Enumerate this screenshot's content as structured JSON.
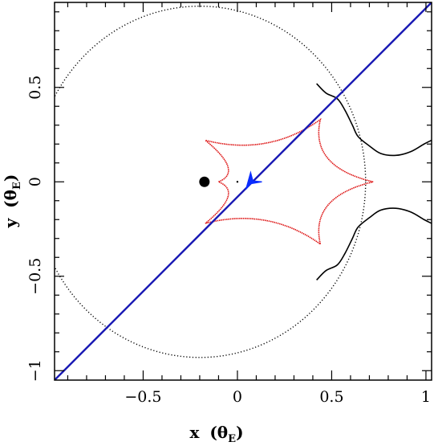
{
  "chart_data": {
    "type": "line",
    "xlim": [
      -0.97,
      1.03
    ],
    "ylim": [
      -1.05,
      0.95
    ],
    "x_ticks": [
      {
        "value": -0.5,
        "label": "−0.5"
      },
      {
        "value": 0,
        "label": "0"
      },
      {
        "value": 0.5,
        "label": "0.5"
      },
      {
        "value": 1,
        "label": "1"
      }
    ],
    "y_ticks": [
      {
        "value": -1,
        "label": "−1"
      },
      {
        "value": -0.5,
        "label": "−0.5"
      },
      {
        "value": 0,
        "label": "0"
      },
      {
        "value": 0.5,
        "label": "0.5"
      }
    ],
    "xlabel": {
      "main": "x",
      "unit": "(θ",
      "sub": "E",
      "close": ")"
    },
    "ylabel": {
      "main": "y",
      "unit": "(θ",
      "sub": "E",
      "close": ")"
    },
    "grid": false,
    "colors": {
      "critical_curve": "#000000",
      "caustic": "#dd1111",
      "trajectory": "#1a1ab4",
      "source_track": "#0a2cff",
      "lens": "#000000"
    },
    "series": [
      {
        "id": "critical-curve",
        "style": "dotted",
        "shape": "ellipse",
        "cx": -0.2,
        "cy": 0,
        "rx": 0.88,
        "ry": 0.93
      },
      {
        "id": "critical-curve-branch-upper",
        "style": "solid",
        "points": [
          [
            0.42,
            0.52
          ],
          [
            0.47,
            0.47
          ],
          [
            0.53,
            0.44
          ],
          [
            0.57,
            0.38
          ],
          [
            0.61,
            0.3
          ],
          [
            0.64,
            0.24
          ],
          [
            0.7,
            0.19
          ],
          [
            0.76,
            0.15
          ],
          [
            0.84,
            0.14
          ],
          [
            0.92,
            0.16
          ],
          [
            0.99,
            0.2
          ],
          [
            1.03,
            0.22
          ]
        ]
      },
      {
        "id": "critical-curve-branch-lower",
        "style": "solid",
        "points": [
          [
            0.42,
            -0.52
          ],
          [
            0.47,
            -0.47
          ],
          [
            0.53,
            -0.44
          ],
          [
            0.57,
            -0.38
          ],
          [
            0.61,
            -0.3
          ],
          [
            0.64,
            -0.24
          ],
          [
            0.7,
            -0.19
          ],
          [
            0.76,
            -0.15
          ],
          [
            0.84,
            -0.14
          ],
          [
            0.92,
            -0.16
          ],
          [
            0.99,
            -0.2
          ],
          [
            1.03,
            -0.22
          ]
        ]
      },
      {
        "id": "caustic",
        "style": "dotted-dense",
        "cusps": [
          [
            0.72,
            0
          ],
          [
            0.44,
            0.33
          ],
          [
            -0.17,
            0.22
          ],
          [
            -0.1,
            0
          ],
          [
            -0.17,
            -0.22
          ],
          [
            0.44,
            -0.33
          ]
        ],
        "inward_factor": 0.32
      },
      {
        "id": "trajectory",
        "style": "solid",
        "points": [
          [
            -0.97,
            -1.05
          ],
          [
            1.03,
            0.95
          ]
        ]
      }
    ],
    "lens_points": [
      {
        "x": -0.175,
        "y": 0,
        "kind": "large"
      },
      {
        "x": 0.0,
        "y": 0.0,
        "kind": "small"
      }
    ],
    "source_cusp": {
      "points": [
        [
          0.045,
          -0.04
        ],
        [
          0.07,
          0.05
        ],
        [
          0.082,
          0.005
        ],
        [
          0.13,
          0.0
        ],
        [
          0.07,
          -0.01
        ],
        [
          0.045,
          -0.04
        ]
      ]
    }
  }
}
